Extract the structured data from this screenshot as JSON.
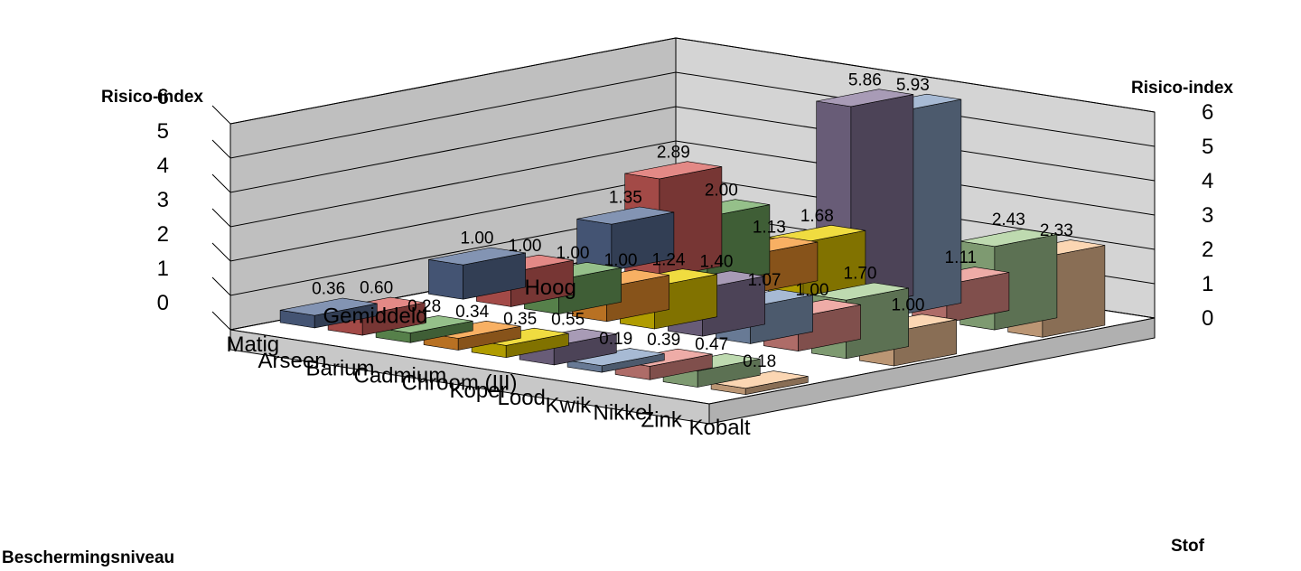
{
  "chart_data": {
    "type": "bar",
    "style": "3d-column",
    "z_axis_title": "Risico-index",
    "z_axis_title_right": "Risico-index",
    "y_axis_title": "Beschermingsniveau",
    "x_axis_title": "Stof",
    "zlim": [
      0,
      6
    ],
    "z_ticks": [
      "0",
      "1",
      "2",
      "3",
      "4",
      "5",
      "6"
    ],
    "z_ticks_right": [
      "0",
      "1",
      "2",
      "3",
      "4",
      "5",
      "6"
    ],
    "substances": [
      "Arseen",
      "Barium",
      "Cadmium",
      "Chroom (III)",
      "Koper",
      "Lood",
      "Kwik",
      "Nikkel",
      "Zink",
      "Kobalt"
    ],
    "levels": [
      "Hoog",
      "Gemiddeld",
      "Matig"
    ],
    "colors": [
      "#5a7099",
      "#d9625e",
      "#72ab63",
      "#f5962f",
      "#ebd000",
      "#8b7a9e",
      "#8aa3c6",
      "#e8908a",
      "#a8cd96",
      "#f9c89a"
    ],
    "series": [
      {
        "level": "Hoog",
        "values": [
          1.35,
          2.89,
          2.0,
          1.13,
          1.68,
          5.86,
          5.93,
          1.11,
          2.43,
          2.33
        ],
        "labels": [
          "1.35",
          "2.89",
          "2.00",
          "1.13",
          "1.68",
          "5.86",
          "5.93",
          "1.11",
          "2.43",
          "2.33"
        ]
      },
      {
        "level": "Gemiddeld",
        "values": [
          1.0,
          1.0,
          1.0,
          1.0,
          1.24,
          1.4,
          1.07,
          1.0,
          1.7,
          1.0
        ],
        "labels": [
          "1.00",
          "1.00",
          "1.00",
          "1.00",
          "1.24",
          "1.40",
          "1.07",
          "1.00",
          "1.70",
          "1.00"
        ]
      },
      {
        "level": "Matig",
        "values": [
          0.36,
          0.6,
          0.28,
          0.34,
          0.35,
          0.55,
          0.19,
          0.39,
          0.47,
          0.18
        ],
        "labels": [
          "0.36",
          "0.60",
          "0.28",
          "0.34",
          "0.35",
          "0.55",
          "0.19",
          "0.39",
          "0.47",
          "0.18"
        ]
      }
    ]
  }
}
